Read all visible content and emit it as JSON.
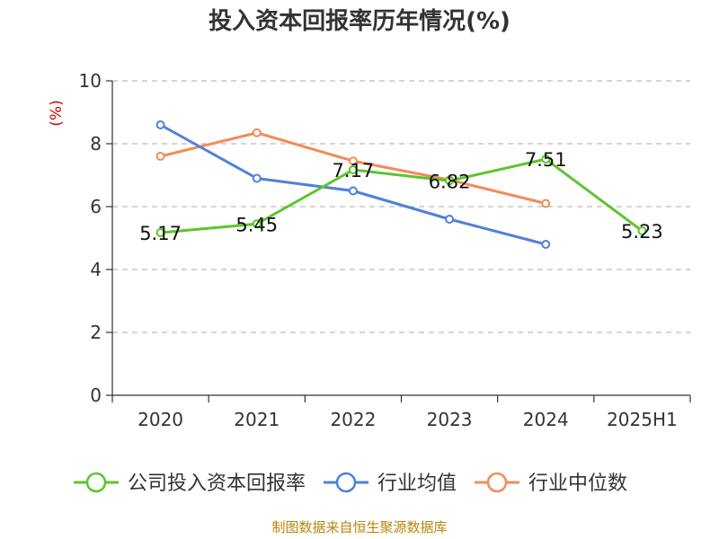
{
  "chart_data": {
    "type": "line",
    "title": "投入资本回报率历年情况(%)",
    "ylabel": "(%)",
    "categories": [
      "2020",
      "2021",
      "2022",
      "2023",
      "2024",
      "2025H1"
    ],
    "ylim": [
      0,
      10
    ],
    "yticks": [
      0,
      2,
      4,
      6,
      8,
      10
    ],
    "grid": true,
    "legend_position": "bottom",
    "series": [
      {
        "name": "公司投入资本回报率",
        "color": "#5cc52c",
        "values": [
          5.17,
          5.45,
          7.17,
          6.82,
          7.51,
          5.23
        ],
        "labels": [
          "5.17",
          "5.45",
          "7.17",
          "6.82",
          "7.51",
          "5.23"
        ]
      },
      {
        "name": "行业均值",
        "color": "#4f81d9",
        "values": [
          8.6,
          6.9,
          6.5,
          5.6,
          4.8,
          null
        ]
      },
      {
        "name": "行业中位数",
        "color": "#f38b5a",
        "values": [
          7.6,
          8.35,
          7.45,
          6.85,
          6.1,
          null
        ]
      }
    ]
  },
  "source": "制图数据来自恒生聚源数据库"
}
